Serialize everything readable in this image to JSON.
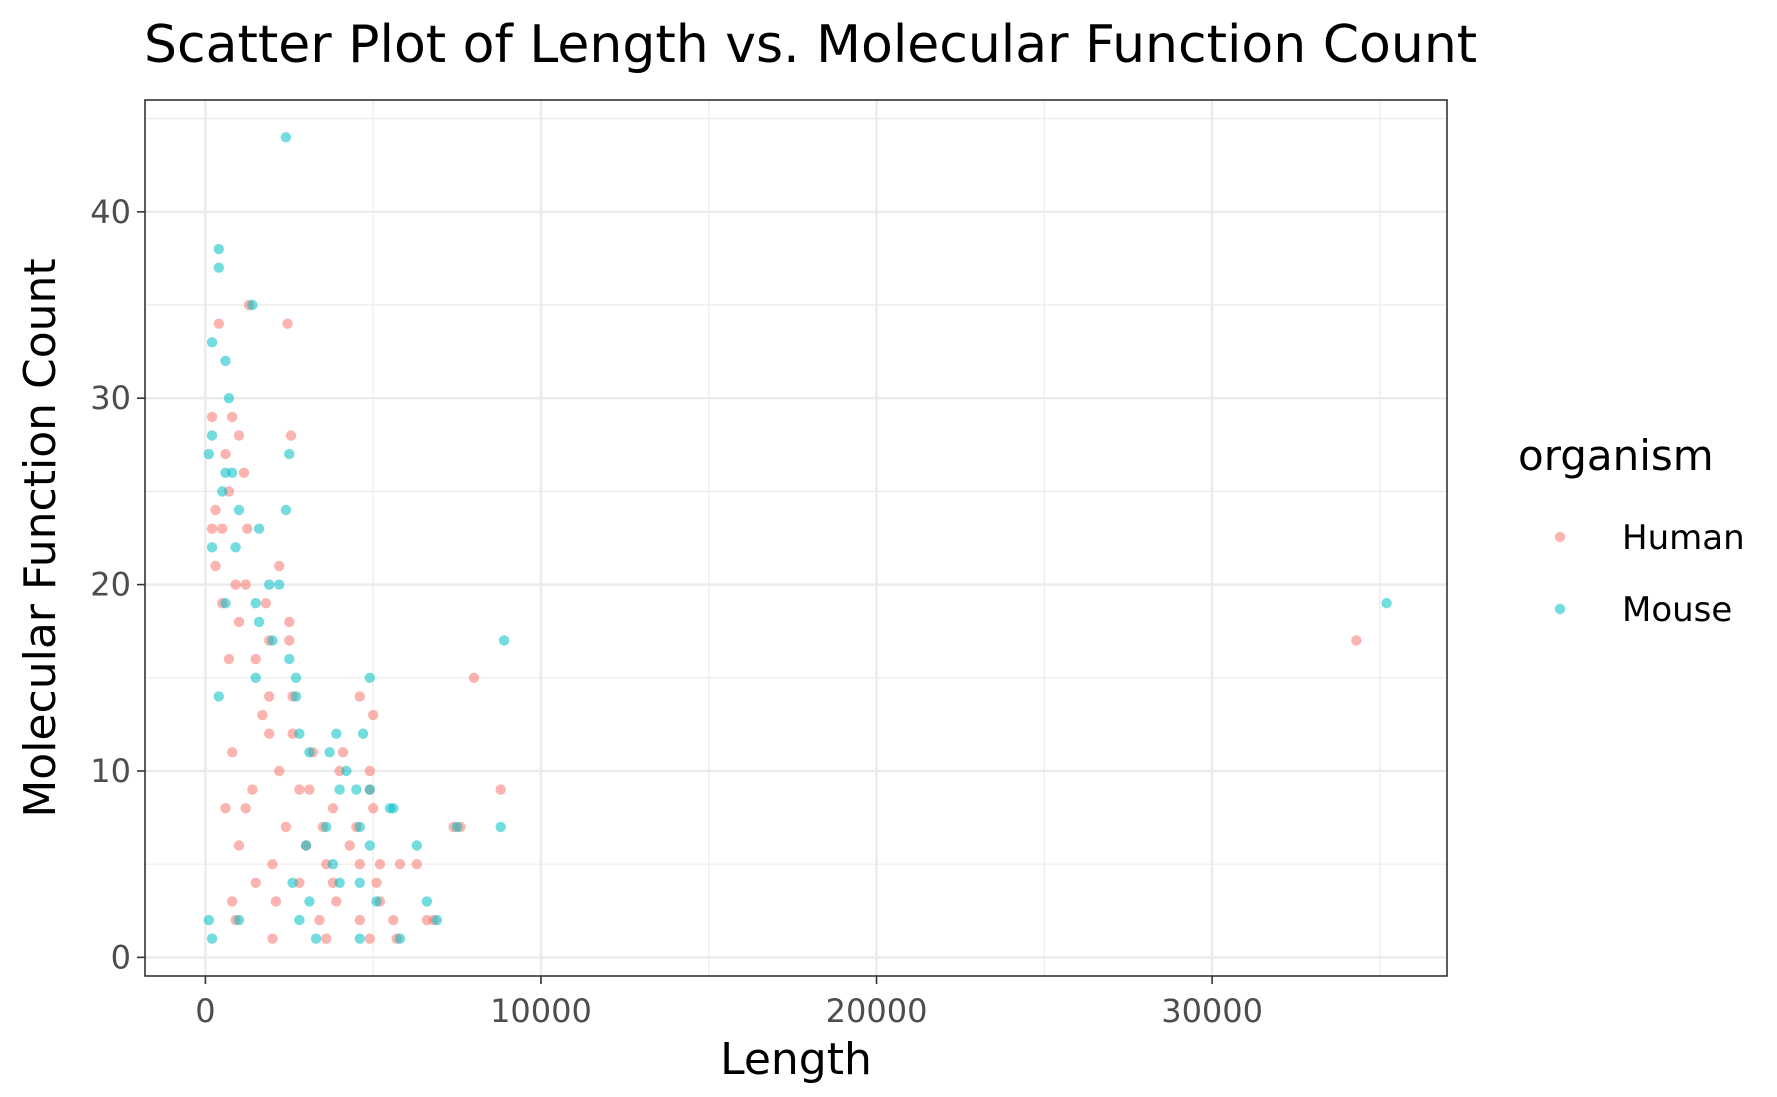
{
  "chart_data": {
    "type": "scatter",
    "title": "Scatter Plot of Length vs. Molecular Function Count",
    "xlabel": "Length",
    "ylabel": "Molecular Function Count",
    "xlim": [
      -1800,
      37000
    ],
    "ylim": [
      -1.0,
      46.0
    ],
    "x_ticks": [
      0,
      10000,
      20000,
      30000
    ],
    "x_tick_labels": [
      "0",
      "10000",
      "20000",
      "30000"
    ],
    "y_ticks": [
      0,
      10,
      20,
      30,
      40
    ],
    "y_tick_labels": [
      "0",
      "10",
      "20",
      "30",
      "40"
    ],
    "grid": true,
    "legend": {
      "title": "organism",
      "position": "right",
      "entries": [
        "Human",
        "Mouse"
      ]
    },
    "series": [
      {
        "name": "Human",
        "color": "#F8766D",
        "points": [
          [
            1300,
            35
          ],
          [
            2450,
            34
          ],
          [
            400,
            34
          ],
          [
            200,
            29
          ],
          [
            800,
            29
          ],
          [
            2550,
            28
          ],
          [
            1000,
            28
          ],
          [
            600,
            27
          ],
          [
            1150,
            26
          ],
          [
            700,
            25
          ],
          [
            300,
            24
          ],
          [
            200,
            23
          ],
          [
            500,
            23
          ],
          [
            1250,
            23
          ],
          [
            2200,
            21
          ],
          [
            300,
            21
          ],
          [
            900,
            20
          ],
          [
            1200,
            20
          ],
          [
            1800,
            19
          ],
          [
            500,
            19
          ],
          [
            2500,
            18
          ],
          [
            1000,
            18
          ],
          [
            2500,
            17
          ],
          [
            1900,
            17
          ],
          [
            700,
            16
          ],
          [
            1500,
            16
          ],
          [
            2600,
            14
          ],
          [
            1900,
            14
          ],
          [
            4600,
            14
          ],
          [
            8000,
            15
          ],
          [
            5000,
            13
          ],
          [
            1700,
            13
          ],
          [
            2600,
            12
          ],
          [
            1900,
            12
          ],
          [
            3200,
            11
          ],
          [
            4100,
            11
          ],
          [
            800,
            11
          ],
          [
            4000,
            10
          ],
          [
            4900,
            10
          ],
          [
            2200,
            10
          ],
          [
            1400,
            9
          ],
          [
            2800,
            9
          ],
          [
            3100,
            9
          ],
          [
            4900,
            9
          ],
          [
            8800,
            9
          ],
          [
            3800,
            8
          ],
          [
            5000,
            8
          ],
          [
            600,
            8
          ],
          [
            1200,
            8
          ],
          [
            7600,
            7
          ],
          [
            7400,
            7
          ],
          [
            3500,
            7
          ],
          [
            2400,
            7
          ],
          [
            4500,
            7
          ],
          [
            5800,
            5
          ],
          [
            6300,
            5
          ],
          [
            4300,
            6
          ],
          [
            3000,
            6
          ],
          [
            1000,
            6
          ],
          [
            2000,
            5
          ],
          [
            3600,
            5
          ],
          [
            4600,
            5
          ],
          [
            5200,
            5
          ],
          [
            1500,
            4
          ],
          [
            2800,
            4
          ],
          [
            3800,
            4
          ],
          [
            5100,
            4
          ],
          [
            800,
            3
          ],
          [
            2100,
            3
          ],
          [
            3900,
            3
          ],
          [
            5200,
            3
          ],
          [
            6600,
            2
          ],
          [
            6800,
            2
          ],
          [
            5600,
            2
          ],
          [
            4600,
            2
          ],
          [
            3400,
            2
          ],
          [
            900,
            2
          ],
          [
            2000,
            1
          ],
          [
            3600,
            1
          ],
          [
            4900,
            1
          ],
          [
            5700,
            1
          ],
          [
            34300,
            17
          ]
        ]
      },
      {
        "name": "Mouse",
        "color": "#00BFC4",
        "points": [
          [
            2400,
            44
          ],
          [
            400,
            38
          ],
          [
            400,
            37
          ],
          [
            1400,
            35
          ],
          [
            200,
            33
          ],
          [
            600,
            32
          ],
          [
            700,
            30
          ],
          [
            200,
            28
          ],
          [
            2500,
            27
          ],
          [
            100,
            27
          ],
          [
            600,
            26
          ],
          [
            800,
            26
          ],
          [
            500,
            25
          ],
          [
            2400,
            24
          ],
          [
            1000,
            24
          ],
          [
            1600,
            23
          ],
          [
            200,
            22
          ],
          [
            900,
            22
          ],
          [
            2200,
            20
          ],
          [
            1900,
            20
          ],
          [
            600,
            19
          ],
          [
            1500,
            19
          ],
          [
            8900,
            17
          ],
          [
            35200,
            19
          ],
          [
            1600,
            18
          ],
          [
            2000,
            17
          ],
          [
            2500,
            16
          ],
          [
            4900,
            15
          ],
          [
            2700,
            15
          ],
          [
            1500,
            15
          ],
          [
            400,
            14
          ],
          [
            2700,
            14
          ],
          [
            4700,
            12
          ],
          [
            3900,
            12
          ],
          [
            2800,
            12
          ],
          [
            3100,
            11
          ],
          [
            3700,
            11
          ],
          [
            4000,
            9
          ],
          [
            4200,
            10
          ],
          [
            5600,
            8
          ],
          [
            5500,
            8
          ],
          [
            4500,
            9
          ],
          [
            4900,
            9
          ],
          [
            8800,
            7
          ],
          [
            7500,
            7
          ],
          [
            4600,
            7
          ],
          [
            3600,
            7
          ],
          [
            6300,
            6
          ],
          [
            4900,
            6
          ],
          [
            3000,
            6
          ],
          [
            6600,
            3
          ],
          [
            4600,
            4
          ],
          [
            4000,
            4
          ],
          [
            2600,
            4
          ],
          [
            3800,
            5
          ],
          [
            5100,
            3
          ],
          [
            3100,
            3
          ],
          [
            5800,
            1
          ],
          [
            4600,
            1
          ],
          [
            3300,
            1
          ],
          [
            2800,
            2
          ],
          [
            6900,
            2
          ],
          [
            1000,
            2
          ],
          [
            100,
            2
          ],
          [
            200,
            1
          ]
        ]
      }
    ]
  }
}
